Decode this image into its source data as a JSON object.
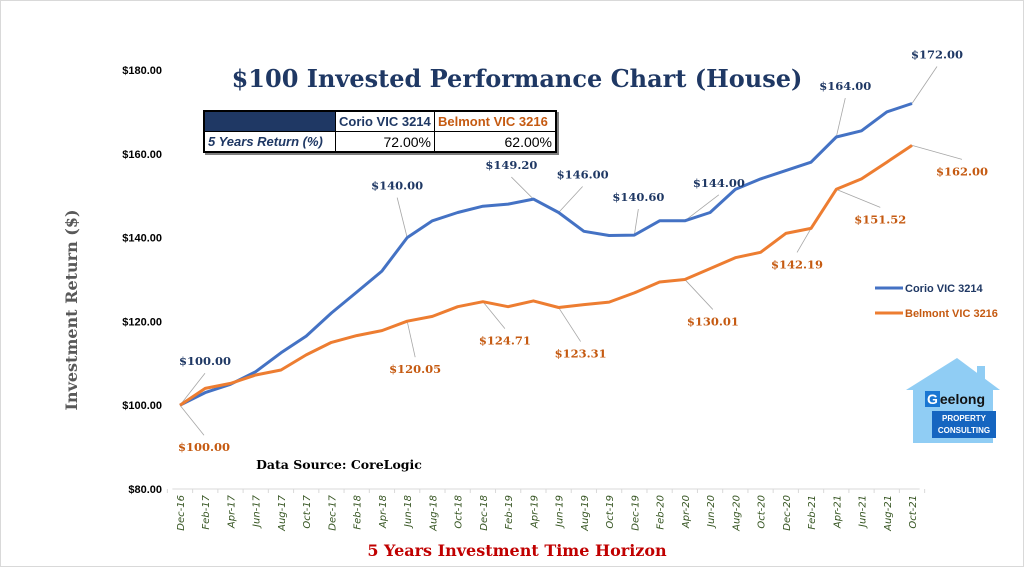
{
  "chart_data": {
    "type": "line",
    "title": "$100 Invested Performance Chart (House)",
    "xlabel": "5 Years Investment Time Horizon",
    "ylabel": "Investment Return ($)",
    "ylim": [
      80,
      180
    ],
    "yticks": [
      80,
      100,
      120,
      140,
      160,
      180
    ],
    "ytick_labels": [
      "$80.00",
      "$100.00",
      "$120.00",
      "$140.00",
      "$160.00",
      "$180.00"
    ],
    "grid": false,
    "legend_position": "right",
    "categories": [
      "Dec-16",
      "Feb-17",
      "Apr-17",
      "Jun-17",
      "Aug-17",
      "Oct-17",
      "Dec-17",
      "Feb-18",
      "Apr-18",
      "Jun-18",
      "Aug-18",
      "Oct-18",
      "Dec-18",
      "Feb-19",
      "Apr-19",
      "Jun-19",
      "Aug-19",
      "Oct-19",
      "Dec-19",
      "Feb-20",
      "Apr-20",
      "Jun-20",
      "Aug-20",
      "Oct-20",
      "Dec-20",
      "Feb-21",
      "Apr-21",
      "Jun-21",
      "Aug-21",
      "Oct-21"
    ],
    "series": [
      {
        "name": "Corio VIC 3214",
        "color": "#4472c4",
        "label_color": "#1f3864",
        "values": [
          100,
          103,
          105,
          108,
          112.5,
          116.5,
          122,
          127,
          132,
          140,
          144,
          146,
          147.5,
          148,
          149.2,
          146,
          141.5,
          140.5,
          140.6,
          144,
          144,
          146,
          151.5,
          154,
          156,
          158,
          164,
          165.5,
          170,
          172
        ],
        "annotations": [
          {
            "index": 0,
            "text": "$100.00"
          },
          {
            "index": 9,
            "text": "$140.00"
          },
          {
            "index": 14,
            "text": "$149.20"
          },
          {
            "index": 15,
            "text": "$146.00"
          },
          {
            "index": 18,
            "text": "$140.60"
          },
          {
            "index": 20,
            "text": "$144.00"
          },
          {
            "index": 26,
            "text": "$164.00"
          },
          {
            "index": 29,
            "text": "$172.00"
          }
        ]
      },
      {
        "name": "Belmont VIC 3216",
        "color": "#ed7d31",
        "label_color": "#c55a11",
        "values": [
          100,
          104,
          105.2,
          107.2,
          108.4,
          112,
          115,
          116.6,
          117.8,
          120.05,
          121.2,
          123.5,
          124.71,
          123.5,
          124.9,
          123.31,
          124,
          124.6,
          126.8,
          129.4,
          130.01,
          132.6,
          135.2,
          136.5,
          141,
          142.19,
          151.52,
          154,
          158,
          162
        ],
        "annotations": [
          {
            "index": 0,
            "text": "$100.00"
          },
          {
            "index": 9,
            "text": "$120.05"
          },
          {
            "index": 12,
            "text": "$124.71"
          },
          {
            "index": 15,
            "text": "$123.31"
          },
          {
            "index": 20,
            "text": "$130.01"
          },
          {
            "index": 25,
            "text": "$142.19"
          },
          {
            "index": 26,
            "text": "$151.52"
          },
          {
            "index": 29,
            "text": "$162.00"
          }
        ]
      }
    ],
    "source_note": "Data Source: CoreLogic"
  },
  "summary_table": {
    "col_a": "Corio VIC 3214",
    "col_b": "Belmont VIC 3216",
    "row_label": "5 Years Return (%)",
    "value_a": "72.00%",
    "value_b": "62.00%"
  },
  "logo": {
    "initial": "G",
    "rest": "eelong",
    "line1": "PROPERTY",
    "line2": "CONSULTING",
    "house_color": "#90cdf4",
    "box_color": "#1565c0"
  }
}
